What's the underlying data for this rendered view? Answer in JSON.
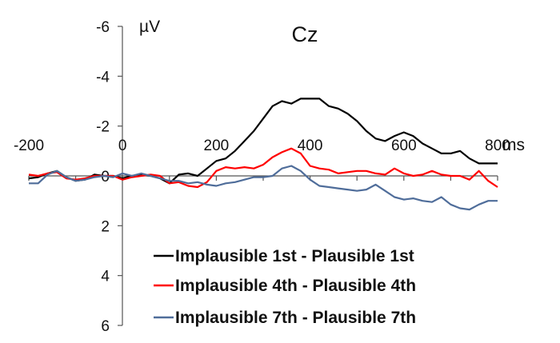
{
  "chart_data": {
    "type": "line",
    "title": "Cz",
    "ylabel": "µV",
    "xlabel": "ms",
    "xlim": [
      -200,
      800
    ],
    "ylim": [
      -6,
      6
    ],
    "y_inverted": true,
    "x_ticks": [
      -200,
      0,
      200,
      400,
      600,
      800
    ],
    "y_ticks": [
      -6,
      -4,
      -2,
      0,
      2,
      4,
      6
    ],
    "x_tick_labels": [
      "-200",
      "0",
      "200",
      "400",
      "600",
      "800"
    ],
    "y_tick_labels": [
      "-6",
      "-4",
      "-2",
      "0",
      "2",
      "4",
      "6"
    ],
    "grid": false,
    "legend_position": "bottom-right",
    "series": [
      {
        "name": "Implausible 1st - Plausible 1st",
        "color": "#000000",
        "x": [
          -200,
          -180,
          -160,
          -140,
          -120,
          -100,
          -80,
          -60,
          -40,
          -20,
          0,
          20,
          40,
          60,
          80,
          100,
          120,
          140,
          160,
          180,
          200,
          220,
          240,
          260,
          280,
          300,
          320,
          340,
          360,
          380,
          400,
          420,
          440,
          460,
          480,
          500,
          520,
          540,
          560,
          580,
          600,
          620,
          640,
          660,
          680,
          700,
          720,
          740,
          760,
          780,
          800
        ],
        "y": [
          0.1,
          0.05,
          -0.1,
          -0.2,
          0.05,
          0.2,
          0.15,
          -0.05,
          0.0,
          0.0,
          0.1,
          0.0,
          -0.05,
          0.0,
          0.1,
          0.3,
          -0.05,
          -0.1,
          0.0,
          -0.3,
          -0.6,
          -0.7,
          -1.0,
          -1.4,
          -1.8,
          -2.3,
          -2.8,
          -3.0,
          -2.9,
          -3.1,
          -3.1,
          -3.1,
          -2.8,
          -2.7,
          -2.5,
          -2.2,
          -1.8,
          -1.5,
          -1.4,
          -1.6,
          -1.75,
          -1.6,
          -1.3,
          -1.1,
          -0.9,
          -0.9,
          -1.0,
          -0.7,
          -0.5,
          -0.5,
          -0.5
        ]
      },
      {
        "name": "Implausible 4th - Plausible 4th",
        "color": "#ff0000",
        "x": [
          -200,
          -180,
          -160,
          -140,
          -120,
          -100,
          -80,
          -60,
          -40,
          -20,
          0,
          20,
          40,
          60,
          80,
          100,
          120,
          140,
          160,
          180,
          200,
          220,
          240,
          260,
          280,
          300,
          320,
          340,
          360,
          380,
          400,
          420,
          440,
          460,
          480,
          500,
          520,
          540,
          560,
          580,
          600,
          620,
          640,
          660,
          680,
          700,
          720,
          740,
          760,
          780,
          800
        ],
        "y": [
          -0.05,
          0.0,
          -0.1,
          -0.15,
          0.1,
          0.15,
          0.1,
          0.0,
          0.0,
          0.0,
          0.15,
          0.05,
          0.0,
          -0.05,
          0.0,
          0.3,
          0.25,
          0.4,
          0.45,
          0.25,
          -0.2,
          -0.35,
          -0.3,
          -0.35,
          -0.3,
          -0.45,
          -0.75,
          -0.95,
          -1.1,
          -0.9,
          -0.4,
          -0.3,
          -0.25,
          -0.1,
          -0.15,
          -0.2,
          -0.2,
          -0.1,
          -0.05,
          -0.3,
          -0.1,
          0.0,
          -0.05,
          -0.2,
          -0.05,
          0.0,
          0.0,
          0.15,
          -0.2,
          0.2,
          0.45
        ]
      },
      {
        "name": "Implausible 7th - Plausible 7th",
        "color": "#4f6d9a",
        "x": [
          -200,
          -180,
          -160,
          -140,
          -120,
          -100,
          -80,
          -60,
          -40,
          -20,
          0,
          20,
          40,
          60,
          80,
          100,
          120,
          140,
          160,
          180,
          200,
          220,
          240,
          260,
          280,
          300,
          320,
          340,
          360,
          380,
          400,
          420,
          440,
          460,
          480,
          500,
          520,
          540,
          560,
          580,
          600,
          620,
          640,
          660,
          680,
          700,
          720,
          740,
          760,
          780,
          800
        ],
        "y": [
          0.3,
          0.3,
          -0.05,
          -0.2,
          0.05,
          0.2,
          0.15,
          0.05,
          0.0,
          0.05,
          -0.1,
          0.0,
          -0.1,
          0.0,
          0.1,
          0.2,
          0.2,
          0.3,
          0.25,
          0.35,
          0.4,
          0.3,
          0.25,
          0.15,
          0.05,
          0.05,
          0.0,
          -0.3,
          -0.4,
          -0.2,
          0.15,
          0.4,
          0.45,
          0.5,
          0.55,
          0.6,
          0.55,
          0.35,
          0.6,
          0.85,
          0.95,
          0.9,
          1.0,
          1.05,
          0.85,
          1.15,
          1.3,
          1.35,
          1.15,
          1.0,
          1.0
        ]
      }
    ]
  }
}
